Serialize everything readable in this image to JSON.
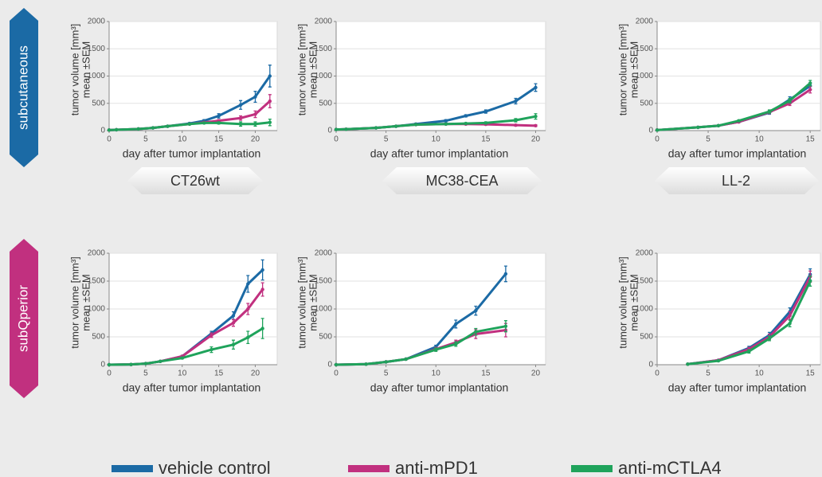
{
  "row_labels": [
    "subcutaneous",
    "subQperior"
  ],
  "model_labels": [
    "CT26wt",
    "MC38-CEA",
    "LL-2"
  ],
  "chart_data": [
    {
      "type": "line",
      "ylabel": "tumor volume [mm³]",
      "ylabel_line2": "mean ±SEM",
      "xlabel": "day after tumor implantation",
      "x": [
        0,
        1,
        4,
        6,
        8,
        11,
        13,
        15,
        18,
        20,
        22
      ],
      "series": [
        {
          "name": "vehicle control",
          "color": "#1b6aa5",
          "values": [
            10,
            15,
            30,
            50,
            80,
            130,
            180,
            270,
            470,
            620,
            1000
          ],
          "errors": [
            3,
            3,
            5,
            8,
            10,
            15,
            20,
            40,
            80,
            100,
            200
          ]
        },
        {
          "name": "anti-mPD1",
          "color": "#c1307f",
          "values": [
            10,
            15,
            30,
            50,
            80,
            120,
            150,
            180,
            230,
            300,
            540
          ],
          "errors": [
            3,
            3,
            5,
            6,
            10,
            15,
            15,
            20,
            40,
            60,
            120
          ]
        },
        {
          "name": "anti-mCTLA4",
          "color": "#1fa35b",
          "values": [
            10,
            15,
            30,
            50,
            80,
            120,
            140,
            140,
            120,
            120,
            150
          ],
          "errors": [
            3,
            3,
            5,
            6,
            10,
            15,
            15,
            20,
            40,
            40,
            60
          ]
        }
      ],
      "xlim": [
        0,
        23
      ],
      "ylim": [
        0,
        2000
      ],
      "xticks": [
        0,
        5,
        10,
        15,
        20
      ],
      "yticks": [
        0,
        500,
        1000,
        1500,
        2000
      ],
      "grid": true
    },
    {
      "type": "line",
      "ylabel": "tumor volume [mm³]",
      "ylabel_line2": "mean ±SEM",
      "xlabel": "day after tumor implantation",
      "x": [
        0,
        1,
        4,
        6,
        8,
        11,
        13,
        15,
        18,
        20
      ],
      "series": [
        {
          "name": "vehicle control",
          "color": "#1b6aa5",
          "values": [
            20,
            25,
            50,
            80,
            120,
            180,
            270,
            350,
            540,
            790
          ],
          "errors": [
            5,
            5,
            8,
            10,
            15,
            20,
            20,
            30,
            50,
            70
          ]
        },
        {
          "name": "anti-mPD1",
          "color": "#c1307f",
          "values": [
            20,
            25,
            50,
            80,
            110,
            120,
            120,
            115,
            100,
            90
          ],
          "errors": [
            5,
            5,
            8,
            10,
            10,
            15,
            15,
            15,
            15,
            15
          ]
        },
        {
          "name": "anti-mCTLA4",
          "color": "#1fa35b",
          "values": [
            20,
            25,
            50,
            80,
            110,
            120,
            130,
            140,
            190,
            260
          ],
          "errors": [
            5,
            5,
            8,
            10,
            10,
            15,
            15,
            20,
            30,
            50
          ]
        }
      ],
      "xlim": [
        0,
        21
      ],
      "ylim": [
        0,
        2000
      ],
      "xticks": [
        0,
        5,
        10,
        15,
        20
      ],
      "yticks": [
        0,
        500,
        1000,
        1500,
        2000
      ],
      "grid": true
    },
    {
      "type": "line",
      "ylabel": "tumor volume [mm³]",
      "ylabel_line2": "mean ±SEM",
      "xlabel": "day after tumor implantation",
      "x": [
        0,
        4,
        6,
        8,
        11,
        13,
        15
      ],
      "series": [
        {
          "name": "vehicle control",
          "color": "#1b6aa5",
          "values": [
            10,
            60,
            90,
            160,
            330,
            570,
            820
          ],
          "errors": [
            3,
            5,
            10,
            15,
            30,
            50,
            60
          ]
        },
        {
          "name": "anti-mPD1",
          "color": "#c1307f",
          "values": [
            10,
            60,
            90,
            160,
            340,
            500,
            750
          ],
          "errors": [
            3,
            5,
            10,
            15,
            30,
            40,
            60
          ]
        },
        {
          "name": "anti-mCTLA4",
          "color": "#1fa35b",
          "values": [
            10,
            60,
            90,
            180,
            350,
            550,
            870
          ],
          "errors": [
            3,
            5,
            10,
            15,
            30,
            40,
            50
          ]
        }
      ],
      "xlim": [
        0,
        16
      ],
      "ylim": [
        0,
        2000
      ],
      "xticks": [
        0,
        5,
        10,
        15
      ],
      "yticks": [
        0,
        500,
        1000,
        1500,
        2000
      ],
      "grid": true
    },
    {
      "type": "line",
      "ylabel": "tumor volume [mm³]",
      "ylabel_line2": "mean ±SEM",
      "xlabel": "day after tumor implantation",
      "x": [
        0,
        3,
        5,
        7,
        10,
        14,
        17,
        19,
        21
      ],
      "series": [
        {
          "name": "vehicle control",
          "color": "#1b6aa5",
          "values": [
            0,
            5,
            20,
            60,
            150,
            560,
            880,
            1450,
            1700
          ],
          "errors": [
            2,
            3,
            5,
            8,
            15,
            40,
            70,
            150,
            180
          ]
        },
        {
          "name": "anti-mPD1",
          "color": "#c1307f",
          "values": [
            0,
            5,
            20,
            60,
            150,
            530,
            750,
            1000,
            1350
          ],
          "errors": [
            2,
            3,
            5,
            8,
            15,
            40,
            60,
            100,
            120
          ]
        },
        {
          "name": "anti-mCTLA4",
          "color": "#1fa35b",
          "values": [
            0,
            5,
            20,
            60,
            120,
            270,
            360,
            490,
            650
          ],
          "errors": [
            2,
            3,
            5,
            8,
            15,
            50,
            80,
            110,
            180
          ]
        }
      ],
      "xlim": [
        0,
        23
      ],
      "ylim": [
        0,
        2000
      ],
      "xticks": [
        0,
        5,
        10,
        15,
        20
      ],
      "yticks": [
        0,
        500,
        1000,
        1500,
        2000
      ],
      "grid": true
    },
    {
      "type": "line",
      "ylabel": "tumor volume [mm³]",
      "ylabel_line2": "mean ±SEM",
      "xlabel": "day after tumor implantation",
      "x": [
        0,
        3,
        5,
        7,
        10,
        12,
        14,
        17
      ],
      "series": [
        {
          "name": "vehicle control",
          "color": "#1b6aa5",
          "values": [
            0,
            10,
            50,
            100,
            320,
            730,
            970,
            1630
          ],
          "errors": [
            2,
            3,
            8,
            10,
            30,
            70,
            80,
            140
          ]
        },
        {
          "name": "anti-mPD1",
          "color": "#c1307f",
          "values": [
            0,
            10,
            50,
            100,
            280,
            400,
            550,
            620
          ],
          "errors": [
            2,
            3,
            8,
            10,
            30,
            40,
            80,
            120
          ]
        },
        {
          "name": "anti-mCTLA4",
          "color": "#1fa35b",
          "values": [
            0,
            10,
            50,
            100,
            270,
            370,
            590,
            690
          ],
          "errors": [
            2,
            3,
            8,
            10,
            30,
            40,
            60,
            100
          ]
        }
      ],
      "xlim": [
        0,
        21
      ],
      "ylim": [
        0,
        2000
      ],
      "xticks": [
        0,
        5,
        10,
        15,
        20
      ],
      "yticks": [
        0,
        500,
        1000,
        1500,
        2000
      ],
      "grid": true
    },
    {
      "type": "line",
      "ylabel": "tumor volume [mm³]",
      "ylabel_line2": "mean ±SEM",
      "xlabel": "day after tumor implantation",
      "x": [
        3,
        6,
        9,
        11,
        13,
        15
      ],
      "series": [
        {
          "name": "vehicle control",
          "color": "#1b6aa5",
          "values": [
            10,
            80,
            300,
            530,
            950,
            1620
          ],
          "errors": [
            5,
            10,
            30,
            50,
            70,
            100
          ]
        },
        {
          "name": "anti-mPD1",
          "color": "#c1307f",
          "values": [
            10,
            80,
            280,
            500,
            880,
            1580
          ],
          "errors": [
            5,
            10,
            30,
            50,
            70,
            100
          ]
        },
        {
          "name": "anti-mCTLA4",
          "color": "#1fa35b",
          "values": [
            10,
            70,
            240,
            470,
            740,
            1500
          ],
          "errors": [
            5,
            10,
            30,
            40,
            60,
            90
          ]
        }
      ],
      "xlim": [
        0,
        16
      ],
      "ylim": [
        0,
        2000
      ],
      "xticks": [
        0,
        5,
        10,
        15
      ],
      "yticks": [
        0,
        500,
        1000,
        1500,
        2000
      ],
      "grid": true
    }
  ]
}
